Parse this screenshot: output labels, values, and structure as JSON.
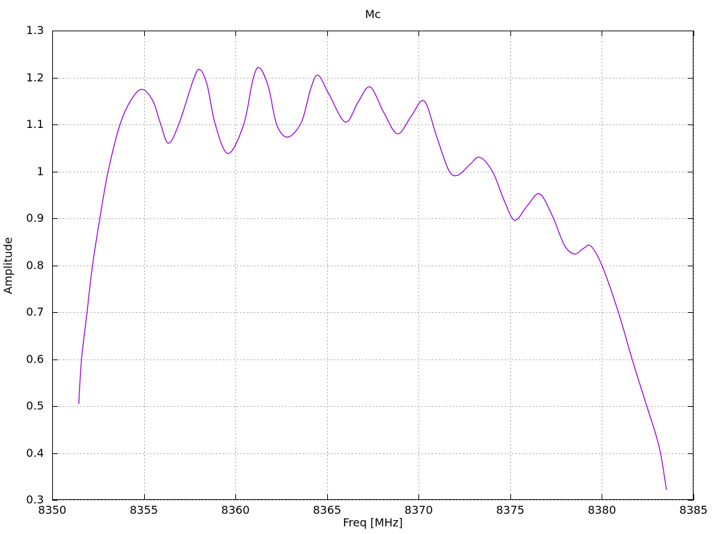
{
  "chart_data": {
    "type": "line",
    "title": "Mc",
    "xlabel": "Freq [MHz]",
    "ylabel": "Amplitude",
    "xlim": [
      8350,
      8385
    ],
    "ylim": [
      0.3,
      1.3
    ],
    "x_ticks": [
      8350,
      8355,
      8360,
      8365,
      8370,
      8375,
      8380,
      8385
    ],
    "x_tick_labels": [
      "8350",
      "8355",
      "8360",
      "8365",
      "8370",
      "8375",
      "8380",
      "8385"
    ],
    "y_ticks": [
      0.3,
      0.4,
      0.5,
      0.6,
      0.7,
      0.8,
      0.9,
      1.0,
      1.1,
      1.2,
      1.3
    ],
    "y_tick_labels": [
      "0.3",
      "0.4",
      "0.5",
      "0.6",
      "0.7",
      "0.8",
      "0.9",
      "1",
      "1.1",
      "1.2",
      "1.3"
    ],
    "grid": true,
    "legend_position": "none",
    "colors": {
      "line": "#9400d3",
      "grid": "#a8a8a8",
      "frame": "#000000",
      "text": "#000000",
      "background": "#ffffff"
    },
    "series": [
      {
        "name": "Mc",
        "points": [
          [
            8351.45,
            0.505
          ],
          [
            8351.6,
            0.6
          ],
          [
            8351.9,
            0.7
          ],
          [
            8352.2,
            0.8
          ],
          [
            8352.6,
            0.9
          ],
          [
            8353.05,
            1.0
          ],
          [
            8353.7,
            1.1
          ],
          [
            8354.3,
            1.152
          ],
          [
            8354.9,
            1.175
          ],
          [
            8355.5,
            1.15
          ],
          [
            8355.9,
            1.103
          ],
          [
            8356.35,
            1.06
          ],
          [
            8356.95,
            1.105
          ],
          [
            8357.7,
            1.195
          ],
          [
            8358.05,
            1.217
          ],
          [
            8358.45,
            1.185
          ],
          [
            8358.9,
            1.1
          ],
          [
            8359.6,
            1.038
          ],
          [
            8360.45,
            1.1
          ],
          [
            8360.95,
            1.195
          ],
          [
            8361.3,
            1.221
          ],
          [
            8361.8,
            1.18
          ],
          [
            8362.25,
            1.1
          ],
          [
            8362.85,
            1.073
          ],
          [
            8363.6,
            1.105
          ],
          [
            8364.1,
            1.175
          ],
          [
            8364.5,
            1.205
          ],
          [
            8365.1,
            1.165
          ],
          [
            8366.0,
            1.105
          ],
          [
            8366.7,
            1.148
          ],
          [
            8367.35,
            1.18
          ],
          [
            8368.1,
            1.125
          ],
          [
            8368.85,
            1.08
          ],
          [
            8369.6,
            1.118
          ],
          [
            8370.3,
            1.15
          ],
          [
            8371.0,
            1.072
          ],
          [
            8371.65,
            1.002
          ],
          [
            8372.15,
            0.992
          ],
          [
            8372.8,
            1.015
          ],
          [
            8373.35,
            1.03
          ],
          [
            8374.05,
            0.998
          ],
          [
            8374.7,
            0.935
          ],
          [
            8375.25,
            0.896
          ],
          [
            8375.95,
            0.928
          ],
          [
            8376.6,
            0.952
          ],
          [
            8377.3,
            0.905
          ],
          [
            8377.95,
            0.843
          ],
          [
            8378.5,
            0.824
          ],
          [
            8379.0,
            0.836
          ],
          [
            8379.4,
            0.841
          ],
          [
            8380.0,
            0.8
          ],
          [
            8380.9,
            0.7
          ],
          [
            8381.65,
            0.6
          ],
          [
            8382.45,
            0.5
          ],
          [
            8382.9,
            0.445
          ],
          [
            8383.2,
            0.4
          ],
          [
            8383.52,
            0.322
          ]
        ]
      }
    ]
  }
}
